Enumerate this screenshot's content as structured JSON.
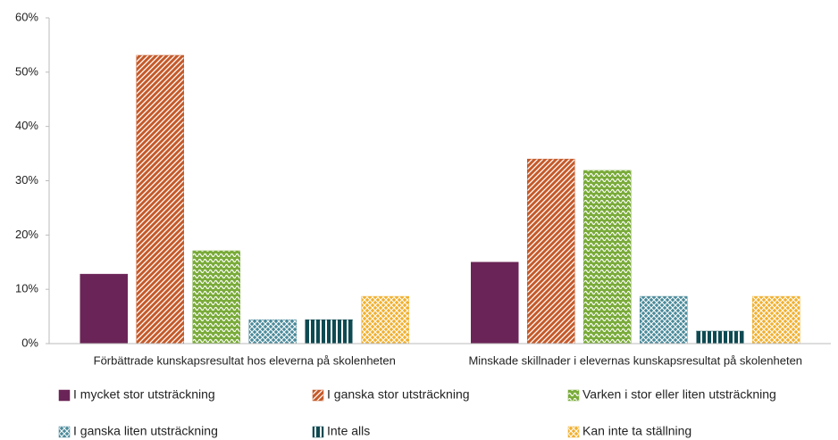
{
  "chart_data": {
    "type": "bar",
    "categories": [
      "Förbättrade kunskapsresultat hos eleverna på skolenheten",
      "Minskade skillnader i elevernas kunskapsresultat på skolenheten"
    ],
    "series": [
      {
        "name": "I mycket stor utsträckning",
        "color": "#6b2457",
        "values": [
          12.8,
          15.0
        ]
      },
      {
        "name": "I ganska stor utsträckning",
        "color": "#c55a2a",
        "values": [
          53.1,
          34.0
        ]
      },
      {
        "name": "Varken i stor eller liten utsträckning",
        "color": "#7aab3a",
        "values": [
          17.1,
          31.9
        ]
      },
      {
        "name": "I ganska liten utsträckning",
        "color": "#4a8a9a",
        "values": [
          4.4,
          8.7
        ]
      },
      {
        "name": "Inte alls",
        "color": "#0e4a52",
        "values": [
          4.4,
          2.3
        ]
      },
      {
        "name": "Kan inte ta ställning",
        "color": "#f0b030",
        "values": [
          8.7,
          8.7
        ]
      }
    ],
    "ylim": [
      0,
      60
    ],
    "yticks": [
      {
        "value": 0,
        "label": "0%"
      },
      {
        "value": 10,
        "label": "10%"
      },
      {
        "value": 20,
        "label": "20%"
      },
      {
        "value": 30,
        "label": "30%"
      },
      {
        "value": 40,
        "label": "40%"
      },
      {
        "value": 50,
        "label": "50%"
      },
      {
        "value": 60,
        "label": "60%"
      }
    ]
  }
}
